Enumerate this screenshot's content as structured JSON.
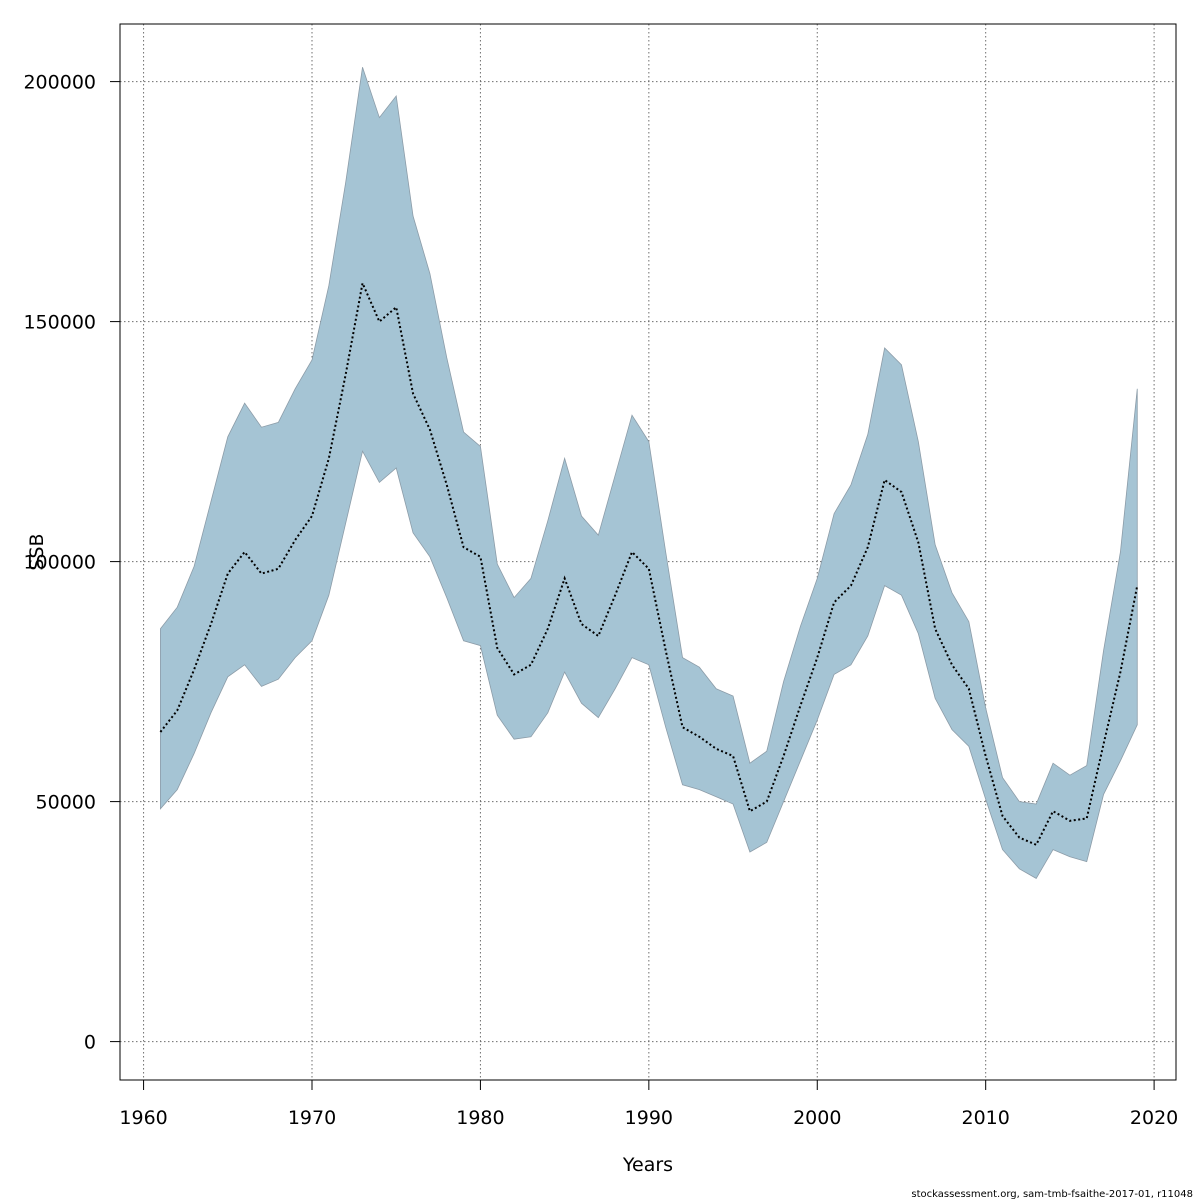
{
  "chart_data": {
    "type": "area",
    "xlabel": "Years",
    "ylabel": "SSB",
    "xlim": [
      1958.6,
      2021.3
    ],
    "ylim": [
      -8000,
      212000
    ],
    "x_ticks": [
      1960,
      1970,
      1980,
      1990,
      2000,
      2010,
      2020
    ],
    "y_ticks": [
      0,
      50000,
      100000,
      150000,
      200000
    ],
    "grid": true,
    "footnote": "stockassessment.org, sam-tmb-fsaithe-2017-01, r11048",
    "colors": {
      "band": "#a5c4d4",
      "band_edge": "#8c9ca8",
      "line": "#000000",
      "grid": "#6e6e6e"
    },
    "x": [
      1961,
      1962,
      1963,
      1964,
      1965,
      1966,
      1967,
      1968,
      1969,
      1970,
      1971,
      1972,
      1973,
      1974,
      1975,
      1976,
      1977,
      1978,
      1979,
      1980,
      1981,
      1982,
      1983,
      1984,
      1985,
      1986,
      1987,
      1988,
      1989,
      1990,
      1991,
      1992,
      1993,
      1994,
      1995,
      1996,
      1997,
      1998,
      1999,
      2000,
      2001,
      2002,
      2003,
      2004,
      2005,
      2006,
      2007,
      2008,
      2009,
      2010,
      2011,
      2012,
      2013,
      2014,
      2015,
      2016,
      2017,
      2018,
      2019
    ],
    "series": [
      {
        "name": "",
        "role": "estimate",
        "values": [
          64500,
          69000,
          77500,
          87000,
          97500,
          102000,
          97500,
          98500,
          104500,
          109500,
          121500,
          139000,
          158000,
          150000,
          153000,
          135000,
          127500,
          116000,
          103000,
          101000,
          82000,
          76500,
          78500,
          86000,
          96500,
          87000,
          84500,
          93000,
          102000,
          98500,
          81500,
          65500,
          63500,
          61000,
          59500,
          48000,
          50000,
          59500,
          70000,
          80000,
          91500,
          95000,
          103000,
          117000,
          114500,
          104000,
          86000,
          78500,
          73500,
          59500,
          47000,
          42500,
          41000,
          48000,
          46000,
          46500,
          62000,
          77000,
          95000
        ]
      },
      {
        "name": "",
        "role": "lower",
        "values": [
          48500,
          52500,
          60000,
          68500,
          76000,
          78500,
          74000,
          75500,
          80000,
          83500,
          93000,
          108000,
          123000,
          116500,
          119500,
          106000,
          101000,
          92500,
          83500,
          82500,
          68000,
          63000,
          63500,
          68500,
          77000,
          70500,
          67500,
          73500,
          80000,
          78500,
          65500,
          53500,
          52500,
          51000,
          49500,
          39500,
          41500,
          50000,
          58500,
          67000,
          76500,
          78500,
          84500,
          95000,
          93000,
          85000,
          71500,
          65000,
          61500,
          50500,
          40000,
          36000,
          34000,
          40000,
          38500,
          37500,
          51500,
          58500,
          66000
        ]
      },
      {
        "name": "",
        "role": "upper",
        "values": [
          86000,
          90500,
          99000,
          112500,
          126000,
          133000,
          128000,
          129000,
          136000,
          142000,
          157500,
          179000,
          203000,
          192500,
          197000,
          172000,
          160000,
          142500,
          127000,
          124000,
          99500,
          92500,
          96500,
          108500,
          121500,
          109500,
          105500,
          118000,
          130500,
          125000,
          102000,
          80000,
          78000,
          73500,
          72000,
          58000,
          60500,
          75000,
          86500,
          96500,
          110000,
          116000,
          126500,
          144500,
          141000,
          125000,
          103500,
          93500,
          87500,
          69500,
          55000,
          50000,
          49500,
          58000,
          55500,
          57500,
          81500,
          102000,
          136000
        ]
      }
    ]
  }
}
